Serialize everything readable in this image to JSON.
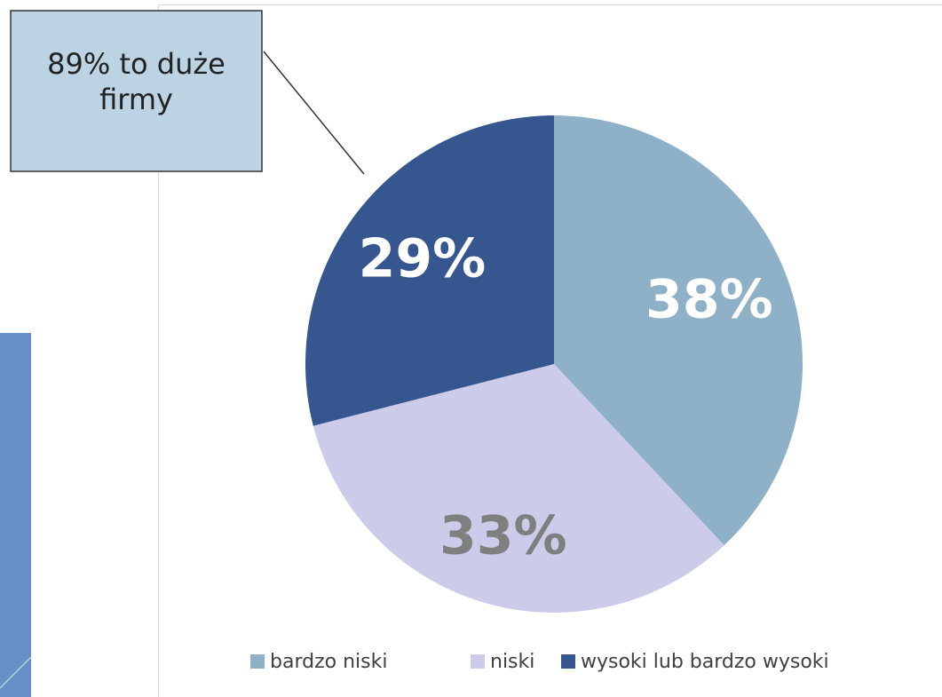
{
  "chart_data": {
    "type": "pie",
    "categories": [
      "bardzo niski",
      "niski",
      "wysoki lub bardzo wysoki"
    ],
    "values": [
      38,
      33,
      29
    ],
    "value_labels": [
      "38%",
      "33%",
      "29%"
    ],
    "colors": [
      "#8fb1c8",
      "#cccbe9",
      "#36568f"
    ],
    "label_colors": [
      "#ffffff",
      "#7f7f7f",
      "#ffffff"
    ],
    "legend": "bottom",
    "annotation": "89% to duże firmy"
  }
}
